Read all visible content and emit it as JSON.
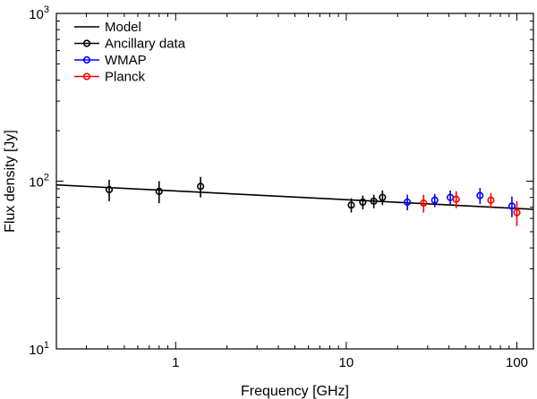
{
  "chart_data": {
    "type": "scatter",
    "title": "",
    "xlabel": "Frequency [GHz]",
    "ylabel": "Flux density [Jy]",
    "xscale": "log",
    "yscale": "log",
    "xlim": [
      0.2,
      125
    ],
    "ylim": [
      10,
      1000
    ],
    "grid": false,
    "legend_position": "top-left",
    "x_ticks": [
      {
        "value": 1,
        "label": "1"
      },
      {
        "value": 10,
        "label": "10"
      },
      {
        "value": 100,
        "label": "100"
      }
    ],
    "y_ticks": [
      {
        "value": 10,
        "base": "10",
        "exp": "1"
      },
      {
        "value": 100,
        "base": "10",
        "exp": "2"
      },
      {
        "value": 1000,
        "base": "10",
        "exp": "3"
      }
    ],
    "legend": [
      {
        "key": "model",
        "label": "Model",
        "color": "#000000",
        "marker": false
      },
      {
        "key": "ancillary",
        "label": "Ancillary data",
        "color": "#000000",
        "marker": true
      },
      {
        "key": "wmap",
        "label": "WMAP",
        "color": "#0000ff",
        "marker": true
      },
      {
        "key": "planck",
        "label": "Planck",
        "color": "#ff0000",
        "marker": true
      }
    ],
    "model": {
      "name": "Model",
      "color": "#000000",
      "x": [
        0.2,
        125
      ],
      "y": [
        95,
        68
      ]
    },
    "series": [
      {
        "name": "Ancillary data",
        "color": "#000000",
        "points": [
          {
            "x": 0.408,
            "y": 89,
            "err": 13
          },
          {
            "x": 0.8,
            "y": 87,
            "err": 13
          },
          {
            "x": 1.4,
            "y": 93,
            "err": 13
          },
          {
            "x": 10.7,
            "y": 72,
            "err": 7
          },
          {
            "x": 12.5,
            "y": 75,
            "err": 7
          },
          {
            "x": 14.5,
            "y": 76,
            "err": 7
          },
          {
            "x": 16.3,
            "y": 80,
            "err": 8
          }
        ]
      },
      {
        "name": "WMAP",
        "color": "#0000ff",
        "points": [
          {
            "x": 22.8,
            "y": 75,
            "err": 8
          },
          {
            "x": 33.0,
            "y": 77,
            "err": 7
          },
          {
            "x": 40.7,
            "y": 80,
            "err": 8
          },
          {
            "x": 60.8,
            "y": 82,
            "err": 9
          },
          {
            "x": 93.5,
            "y": 71,
            "err": 10
          }
        ]
      },
      {
        "name": "Planck",
        "color": "#ff0000",
        "points": [
          {
            "x": 28.4,
            "y": 74,
            "err": 9
          },
          {
            "x": 44.1,
            "y": 78,
            "err": 9
          },
          {
            "x": 70.4,
            "y": 77,
            "err": 8
          },
          {
            "x": 100,
            "y": 65,
            "err": 11
          }
        ]
      }
    ]
  }
}
